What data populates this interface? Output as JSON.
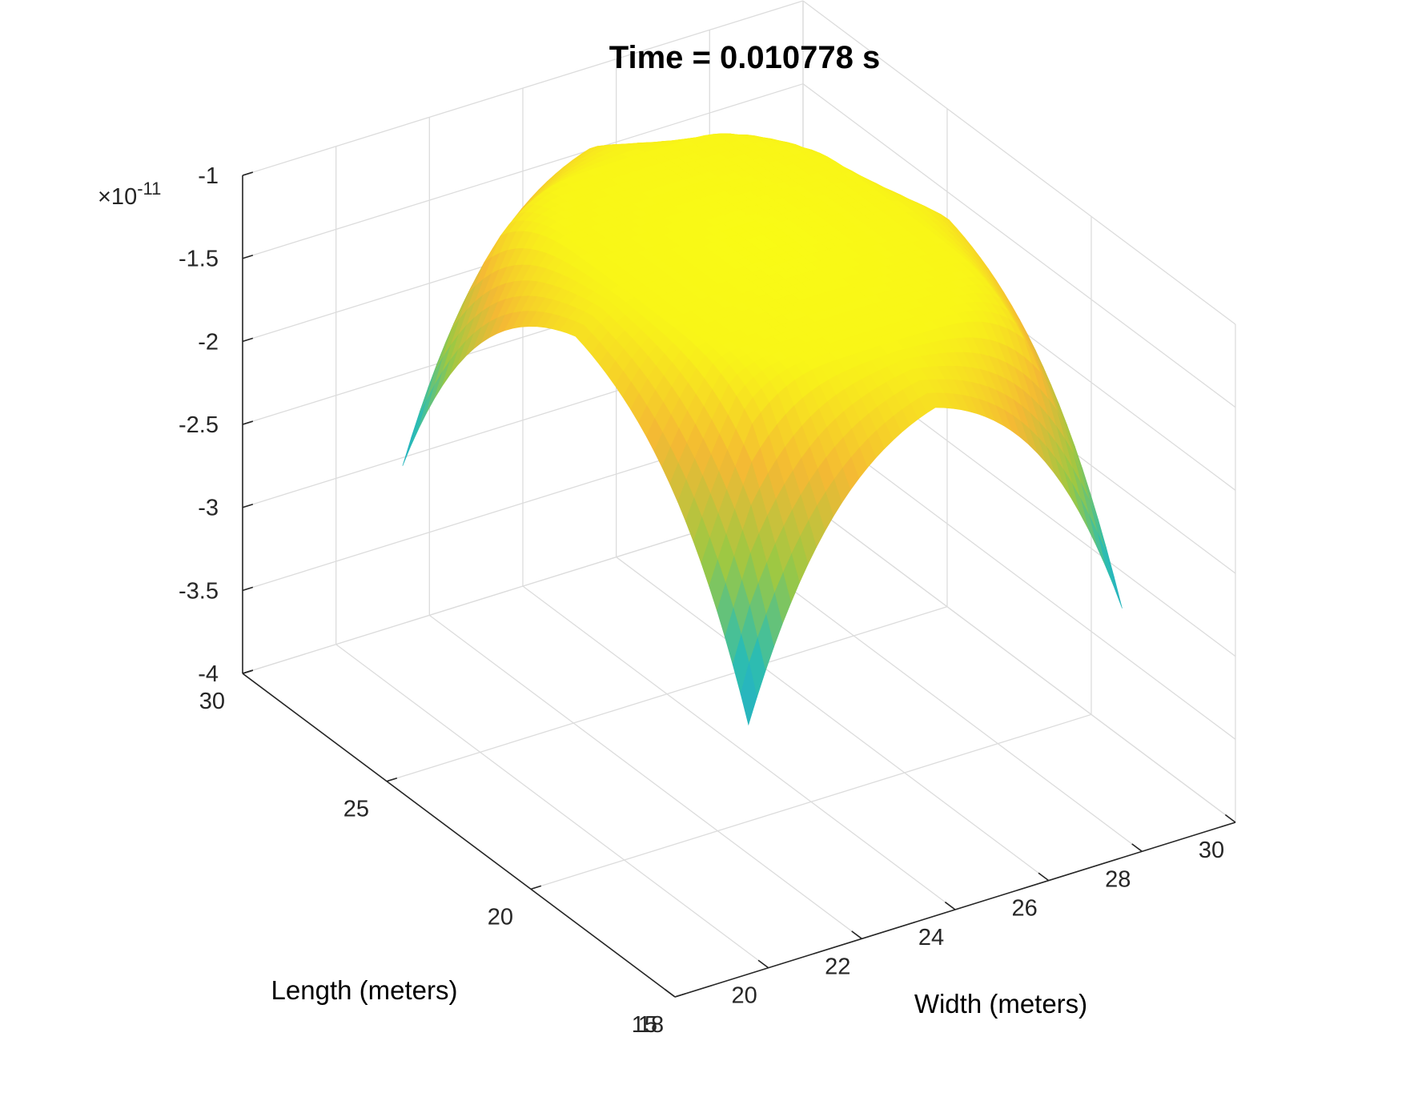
{
  "chart_data": {
    "type": "surface",
    "title": "Time = 0.010778 s",
    "xlabel": "Width (meters)",
    "ylabel": "Length (meters)",
    "zlabel": "",
    "z_exponent_label": "×10",
    "z_exponent_power": "-11",
    "xlim": [
      18,
      30
    ],
    "ylim": [
      15,
      30
    ],
    "zlim": [
      -4,
      -1
    ],
    "x_ticks": [
      {
        "value": 18,
        "label": "18"
      },
      {
        "value": 20,
        "label": "20"
      },
      {
        "value": 22,
        "label": "22"
      },
      {
        "value": 24,
        "label": "24"
      },
      {
        "value": 26,
        "label": "26"
      },
      {
        "value": 28,
        "label": "28"
      },
      {
        "value": 30,
        "label": "30"
      }
    ],
    "y_ticks": [
      {
        "value": 15,
        "label": "15"
      },
      {
        "value": 20,
        "label": "20"
      },
      {
        "value": 25,
        "label": "25"
      },
      {
        "value": 30,
        "label": "30"
      }
    ],
    "z_ticks": [
      {
        "value": -4,
        "label": "-4"
      },
      {
        "value": -3.5,
        "label": "-3.5"
      },
      {
        "value": -3,
        "label": "-3"
      },
      {
        "value": -2.5,
        "label": "-2.5"
      },
      {
        "value": -2,
        "label": "-2"
      },
      {
        "value": -1.5,
        "label": "-1.5"
      },
      {
        "value": -1,
        "label": "-1"
      }
    ],
    "z_scale": 1e-11,
    "surface": {
      "x_range": [
        20.5,
        28.5
      ],
      "y_range": [
        16.5,
        28.5
      ],
      "z_plateau": -1.0,
      "z_corner_min": -3.9,
      "description_shape": "plateau with four legs"
    },
    "colormap": "parula",
    "colormap_stops": [
      "#3e26a8",
      "#4465f6",
      "#1ea8d8",
      "#2ebdaf",
      "#9cc843",
      "#f4b934",
      "#f9fb15"
    ],
    "grid": true,
    "box": "open-3d"
  }
}
